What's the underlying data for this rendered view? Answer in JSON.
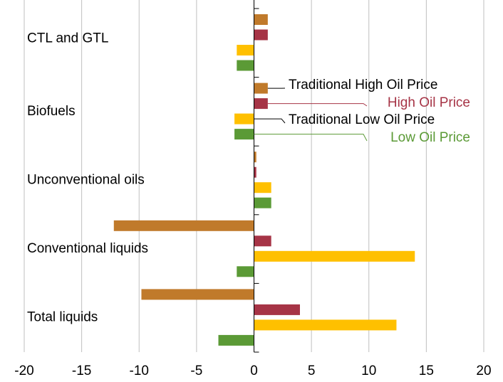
{
  "chart_data": {
    "type": "hbar",
    "categories": [
      "CTL and GTL",
      "Biofuels",
      "Unconventional oils",
      "Conventional liquids",
      "Total liquids"
    ],
    "series": [
      {
        "name": "Traditional High Oil Price",
        "color": "#c07a2b",
        "label_color": "#000000",
        "values": [
          1.2,
          1.2,
          0.2,
          -12.2,
          -9.8
        ]
      },
      {
        "name": "High Oil Price",
        "color": "#a63446",
        "label_color": "#a63446",
        "values": [
          1.2,
          1.2,
          0.2,
          1.5,
          4
        ]
      },
      {
        "name": "Traditional Low Oil Price",
        "color": "#ffc000",
        "label_color": "#000000",
        "values": [
          -1.5,
          -1.7,
          1.5,
          14,
          12.4
        ]
      },
      {
        "name": "Low Oil Price",
        "color": "#5b9a36",
        "label_color": "#5b9a36",
        "values": [
          -1.5,
          -1.7,
          1.5,
          -1.5,
          -3.1
        ]
      }
    ],
    "xlim": [
      -20,
      20
    ],
    "xticks": [
      -20,
      -15,
      -10,
      -5,
      0,
      5,
      10,
      15,
      20
    ],
    "grid": true
  }
}
